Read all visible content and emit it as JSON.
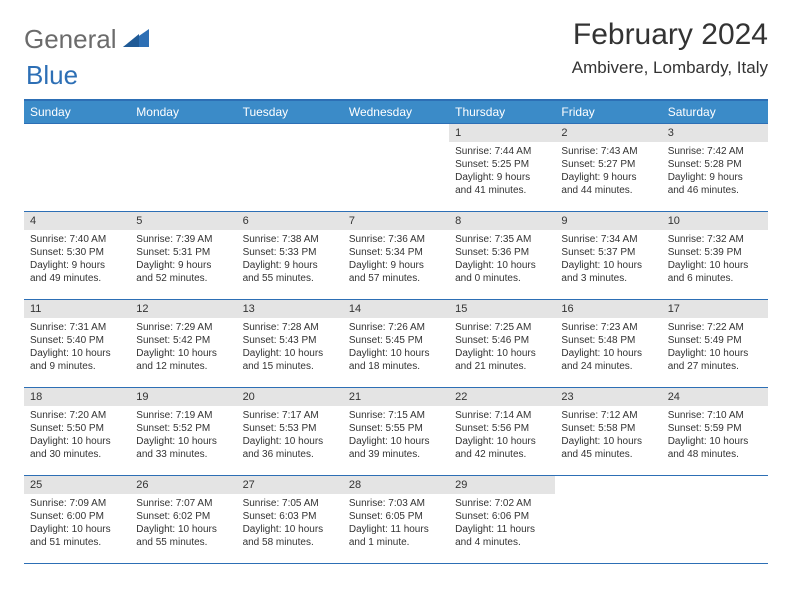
{
  "logo": {
    "text1": "General",
    "text2": "Blue"
  },
  "title": "February 2024",
  "location": "Ambivere, Lombardy, Italy",
  "colors": {
    "header_bg": "#3b8bc8",
    "header_border": "#2d6fb5",
    "row_border": "#2d6fb5",
    "daynum_bg": "#e4e4e4",
    "text": "#333333",
    "logo_gray": "#6b6b6b",
    "logo_blue": "#2d6fb5",
    "page_bg": "#ffffff"
  },
  "weekdays": [
    "Sunday",
    "Monday",
    "Tuesday",
    "Wednesday",
    "Thursday",
    "Friday",
    "Saturday"
  ],
  "weeks": [
    [
      null,
      null,
      null,
      null,
      {
        "n": "1",
        "sr": "Sunrise: 7:44 AM",
        "ss": "Sunset: 5:25 PM",
        "dl1": "Daylight: 9 hours",
        "dl2": "and 41 minutes."
      },
      {
        "n": "2",
        "sr": "Sunrise: 7:43 AM",
        "ss": "Sunset: 5:27 PM",
        "dl1": "Daylight: 9 hours",
        "dl2": "and 44 minutes."
      },
      {
        "n": "3",
        "sr": "Sunrise: 7:42 AM",
        "ss": "Sunset: 5:28 PM",
        "dl1": "Daylight: 9 hours",
        "dl2": "and 46 minutes."
      }
    ],
    [
      {
        "n": "4",
        "sr": "Sunrise: 7:40 AM",
        "ss": "Sunset: 5:30 PM",
        "dl1": "Daylight: 9 hours",
        "dl2": "and 49 minutes."
      },
      {
        "n": "5",
        "sr": "Sunrise: 7:39 AM",
        "ss": "Sunset: 5:31 PM",
        "dl1": "Daylight: 9 hours",
        "dl2": "and 52 minutes."
      },
      {
        "n": "6",
        "sr": "Sunrise: 7:38 AM",
        "ss": "Sunset: 5:33 PM",
        "dl1": "Daylight: 9 hours",
        "dl2": "and 55 minutes."
      },
      {
        "n": "7",
        "sr": "Sunrise: 7:36 AM",
        "ss": "Sunset: 5:34 PM",
        "dl1": "Daylight: 9 hours",
        "dl2": "and 57 minutes."
      },
      {
        "n": "8",
        "sr": "Sunrise: 7:35 AM",
        "ss": "Sunset: 5:36 PM",
        "dl1": "Daylight: 10 hours",
        "dl2": "and 0 minutes."
      },
      {
        "n": "9",
        "sr": "Sunrise: 7:34 AM",
        "ss": "Sunset: 5:37 PM",
        "dl1": "Daylight: 10 hours",
        "dl2": "and 3 minutes."
      },
      {
        "n": "10",
        "sr": "Sunrise: 7:32 AM",
        "ss": "Sunset: 5:39 PM",
        "dl1": "Daylight: 10 hours",
        "dl2": "and 6 minutes."
      }
    ],
    [
      {
        "n": "11",
        "sr": "Sunrise: 7:31 AM",
        "ss": "Sunset: 5:40 PM",
        "dl1": "Daylight: 10 hours",
        "dl2": "and 9 minutes."
      },
      {
        "n": "12",
        "sr": "Sunrise: 7:29 AM",
        "ss": "Sunset: 5:42 PM",
        "dl1": "Daylight: 10 hours",
        "dl2": "and 12 minutes."
      },
      {
        "n": "13",
        "sr": "Sunrise: 7:28 AM",
        "ss": "Sunset: 5:43 PM",
        "dl1": "Daylight: 10 hours",
        "dl2": "and 15 minutes."
      },
      {
        "n": "14",
        "sr": "Sunrise: 7:26 AM",
        "ss": "Sunset: 5:45 PM",
        "dl1": "Daylight: 10 hours",
        "dl2": "and 18 minutes."
      },
      {
        "n": "15",
        "sr": "Sunrise: 7:25 AM",
        "ss": "Sunset: 5:46 PM",
        "dl1": "Daylight: 10 hours",
        "dl2": "and 21 minutes."
      },
      {
        "n": "16",
        "sr": "Sunrise: 7:23 AM",
        "ss": "Sunset: 5:48 PM",
        "dl1": "Daylight: 10 hours",
        "dl2": "and 24 minutes."
      },
      {
        "n": "17",
        "sr": "Sunrise: 7:22 AM",
        "ss": "Sunset: 5:49 PM",
        "dl1": "Daylight: 10 hours",
        "dl2": "and 27 minutes."
      }
    ],
    [
      {
        "n": "18",
        "sr": "Sunrise: 7:20 AM",
        "ss": "Sunset: 5:50 PM",
        "dl1": "Daylight: 10 hours",
        "dl2": "and 30 minutes."
      },
      {
        "n": "19",
        "sr": "Sunrise: 7:19 AM",
        "ss": "Sunset: 5:52 PM",
        "dl1": "Daylight: 10 hours",
        "dl2": "and 33 minutes."
      },
      {
        "n": "20",
        "sr": "Sunrise: 7:17 AM",
        "ss": "Sunset: 5:53 PM",
        "dl1": "Daylight: 10 hours",
        "dl2": "and 36 minutes."
      },
      {
        "n": "21",
        "sr": "Sunrise: 7:15 AM",
        "ss": "Sunset: 5:55 PM",
        "dl1": "Daylight: 10 hours",
        "dl2": "and 39 minutes."
      },
      {
        "n": "22",
        "sr": "Sunrise: 7:14 AM",
        "ss": "Sunset: 5:56 PM",
        "dl1": "Daylight: 10 hours",
        "dl2": "and 42 minutes."
      },
      {
        "n": "23",
        "sr": "Sunrise: 7:12 AM",
        "ss": "Sunset: 5:58 PM",
        "dl1": "Daylight: 10 hours",
        "dl2": "and 45 minutes."
      },
      {
        "n": "24",
        "sr": "Sunrise: 7:10 AM",
        "ss": "Sunset: 5:59 PM",
        "dl1": "Daylight: 10 hours",
        "dl2": "and 48 minutes."
      }
    ],
    [
      {
        "n": "25",
        "sr": "Sunrise: 7:09 AM",
        "ss": "Sunset: 6:00 PM",
        "dl1": "Daylight: 10 hours",
        "dl2": "and 51 minutes."
      },
      {
        "n": "26",
        "sr": "Sunrise: 7:07 AM",
        "ss": "Sunset: 6:02 PM",
        "dl1": "Daylight: 10 hours",
        "dl2": "and 55 minutes."
      },
      {
        "n": "27",
        "sr": "Sunrise: 7:05 AM",
        "ss": "Sunset: 6:03 PM",
        "dl1": "Daylight: 10 hours",
        "dl2": "and 58 minutes."
      },
      {
        "n": "28",
        "sr": "Sunrise: 7:03 AM",
        "ss": "Sunset: 6:05 PM",
        "dl1": "Daylight: 11 hours",
        "dl2": "and 1 minute."
      },
      {
        "n": "29",
        "sr": "Sunrise: 7:02 AM",
        "ss": "Sunset: 6:06 PM",
        "dl1": "Daylight: 11 hours",
        "dl2": "and 4 minutes."
      },
      null,
      null
    ]
  ]
}
